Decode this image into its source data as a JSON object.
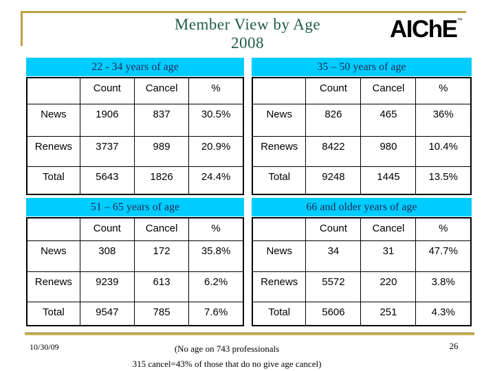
{
  "slide": {
    "title_line1": "Member View by Age",
    "title_line2": "2008",
    "logo_text": "AIChE",
    "logo_mark": "™"
  },
  "columns": [
    "",
    "Count",
    "Cancel",
    "%"
  ],
  "tables": [
    {
      "title": "22 - 34 years of age",
      "rows": [
        [
          "News",
          "1906",
          "837",
          "30.5%"
        ],
        [
          "Renews",
          "3737",
          "989",
          "20.9%"
        ],
        [
          "Total",
          "5643",
          "1826",
          "24.4%"
        ]
      ]
    },
    {
      "title": "35 – 50 years of age",
      "rows": [
        [
          "News",
          "826",
          "465",
          "36%"
        ],
        [
          "Renews",
          "8422",
          "980",
          "10.4%"
        ],
        [
          "Total",
          "9248",
          "1445",
          "13.5%"
        ]
      ]
    },
    {
      "title": "51 – 65 years of age",
      "rows": [
        [
          "News",
          "308",
          "172",
          "35.8%"
        ],
        [
          "Renews",
          "9239",
          "613",
          "6.2%"
        ],
        [
          "Total",
          "9547",
          "785",
          "7.6%"
        ]
      ]
    },
    {
      "title": "66 and older years of age",
      "rows": [
        [
          "News",
          "34",
          "31",
          "47.7%"
        ],
        [
          "Renews",
          "5572",
          "220",
          "3.8%"
        ],
        [
          "Total",
          "5606",
          "251",
          "4.3%"
        ]
      ]
    }
  ],
  "footer": {
    "date": "10/30/09",
    "page_number": "26",
    "note_line1": "(No age on 743 professionals",
    "note_line2": "315 cancel=43% of those that do no give age cancel)"
  },
  "colors": {
    "table_header_bar": "#00CCFF",
    "accent_gold": "#BDA23F",
    "title_green": "#1E5B48",
    "bar_text_navy": "#1A2A52"
  }
}
